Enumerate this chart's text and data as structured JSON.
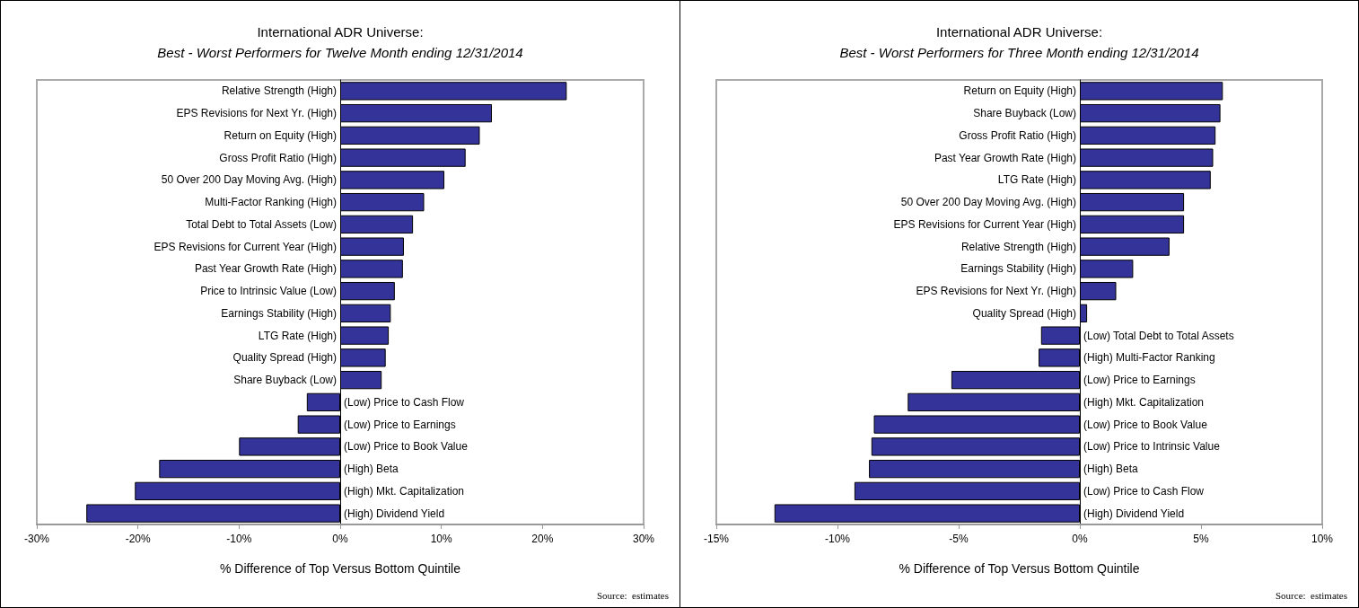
{
  "chart_data": [
    {
      "type": "bar",
      "orientation": "horizontal",
      "title": "International ADR Universe:",
      "subtitle": "Best - Worst Performers for Twelve Month ending 12/31/2014",
      "xlabel": "% Difference of Top Versus Bottom Quintile",
      "annotations": [
        "Source:  estimates"
      ],
      "color": "#333399",
      "grid": false,
      "categories": [
        "Relative Strength (High)",
        "EPS Revisions for Next Yr. (High)",
        "Return on Equity (High)",
        "Gross Profit Ratio (High)",
        "50 Over 200 Day Moving Avg. (High)",
        "Multi-Factor Ranking (High)",
        "Total Debt to Total Assets (Low)",
        "EPS Revisions for Current Year (High)",
        "Past Year Growth Rate (High)",
        "Price to Intrinsic Value (Low)",
        "Earnings Stability (High)",
        "LTG Rate (High)",
        "Quality Spread (High)",
        "Share Buyback (Low)",
        "(Low) Price to Cash Flow",
        "(Low) Price to Earnings",
        "(Low) Price to Book Value",
        "(High) Beta",
        "(High) Mkt. Capitalization",
        "(High) Dividend Yield"
      ],
      "values": [
        22.4,
        15.0,
        13.8,
        12.4,
        10.3,
        8.3,
        7.2,
        6.3,
        6.2,
        5.4,
        5.0,
        4.8,
        4.5,
        4.1,
        -3.3,
        -4.2,
        -10.0,
        -17.9,
        -20.3,
        -25.1
      ],
      "xlim": [
        -30,
        30
      ],
      "xticks": [
        {
          "value": -30,
          "label": "-30%"
        },
        {
          "value": -20,
          "label": "-20%"
        },
        {
          "value": -10,
          "label": "-10%"
        },
        {
          "value": 0,
          "label": "0%"
        },
        {
          "value": 10,
          "label": "10%"
        },
        {
          "value": 20,
          "label": "20%"
        },
        {
          "value": 30,
          "label": "30%"
        }
      ]
    },
    {
      "type": "bar",
      "orientation": "horizontal",
      "title": "International ADR Universe:",
      "subtitle": "Best - Worst Performers for Three Month ending 12/31/2014",
      "xlabel": "% Difference of Top Versus Bottom Quintile",
      "annotations": [
        "Source:  estimates"
      ],
      "color": "#333399",
      "grid": false,
      "categories": [
        "Return on Equity (High)",
        "Share Buyback (Low)",
        "Gross Profit Ratio (High)",
        "Past Year Growth Rate (High)",
        "LTG Rate (High)",
        "50 Over 200 Day Moving Avg. (High)",
        "EPS Revisions for Current Year (High)",
        "Relative Strength (High)",
        "Earnings Stability (High)",
        "EPS Revisions for Next Yr. (High)",
        "Quality Spread (High)",
        "(Low) Total Debt to Total Assets",
        "(High) Multi-Factor Ranking",
        "(Low) Price to Earnings",
        "(High) Mkt. Capitalization",
        "(Low) Price to Book Value",
        "(Low) Price to Intrinsic Value",
        "(High) Beta",
        "(Low) Price to Cash Flow",
        "(High) Dividend Yield"
      ],
      "values": [
        5.9,
        5.8,
        5.6,
        5.5,
        5.4,
        4.3,
        4.3,
        3.7,
        2.2,
        1.5,
        0.3,
        -1.6,
        -1.7,
        -5.3,
        -7.1,
        -8.5,
        -8.6,
        -8.7,
        -9.3,
        -12.6
      ],
      "xlim": [
        -15,
        10
      ],
      "xticks": [
        {
          "value": -15,
          "label": "-15%"
        },
        {
          "value": -10,
          "label": "-10%"
        },
        {
          "value": -5,
          "label": "-5%"
        },
        {
          "value": 0,
          "label": "0%"
        },
        {
          "value": 5,
          "label": "5%"
        },
        {
          "value": 10,
          "label": "10%"
        }
      ]
    }
  ]
}
